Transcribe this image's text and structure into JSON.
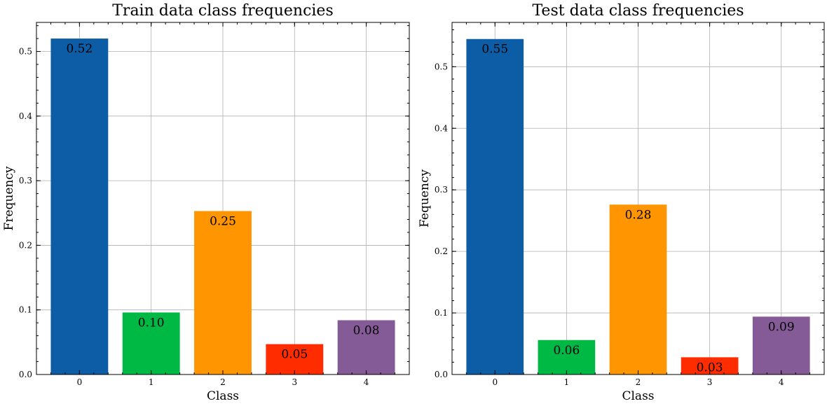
{
  "colors": [
    "#0c5da5",
    "#00b945",
    "#ff9500",
    "#ff2c00",
    "#845b97"
  ],
  "chart_data": [
    {
      "type": "bar",
      "title": "Train data class frequencies",
      "xlabel": "Class",
      "ylabel": "Frequency",
      "categories": [
        "0",
        "1",
        "2",
        "3",
        "4"
      ],
      "values": [
        0.52,
        0.096,
        0.253,
        0.047,
        0.084
      ],
      "value_labels": [
        "0.52",
        "0.10",
        "0.25",
        "0.05",
        "0.08"
      ],
      "ylim": [
        0,
        0.545
      ],
      "yticks": [
        0.0,
        0.1,
        0.2,
        0.3,
        0.4,
        0.5
      ],
      "ytick_labels": [
        "0.0",
        "0.1",
        "0.2",
        "0.3",
        "0.4",
        "0.5"
      ],
      "grid": true
    },
    {
      "type": "bar",
      "title": "Test data class frequencies",
      "xlabel": "Class",
      "ylabel": "Fequency",
      "categories": [
        "0",
        "1",
        "2",
        "3",
        "4"
      ],
      "values": [
        0.545,
        0.056,
        0.276,
        0.028,
        0.094
      ],
      "value_labels": [
        "0.55",
        "0.06",
        "0.28",
        "0.03",
        "0.09"
      ],
      "ylim": [
        0,
        0.572
      ],
      "yticks": [
        0.0,
        0.1,
        0.2,
        0.3,
        0.4,
        0.5
      ],
      "ytick_labels": [
        "0.0",
        "0.1",
        "0.2",
        "0.3",
        "0.4",
        "0.5"
      ],
      "grid": true
    }
  ]
}
